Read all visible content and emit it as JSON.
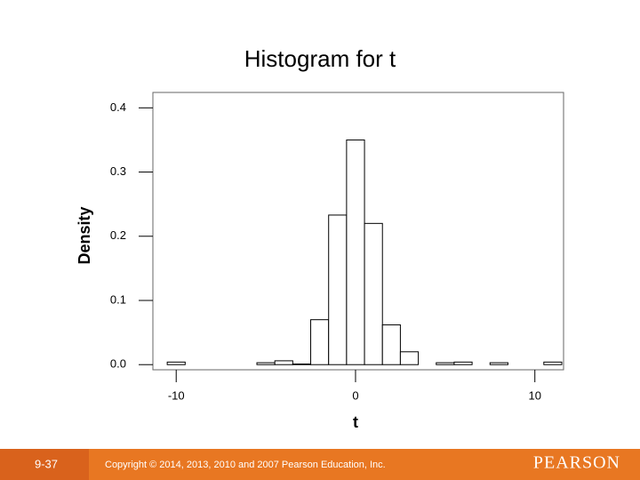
{
  "chart_data": {
    "type": "histogram",
    "title": "Histogram for t",
    "bins": [
      -10.5,
      -9.5,
      -8.5,
      -7.5,
      -6.5,
      -5.5,
      -4.5,
      -3.5,
      -2.5,
      -1.5,
      -0.5,
      0.5,
      1.5,
      2.5,
      3.5,
      4.5,
      5.5,
      6.5,
      7.5,
      8.5,
      9.5,
      10.5,
      11.5
    ],
    "values": [
      0.004,
      0,
      0,
      0,
      0,
      0.003,
      0.006,
      0.001,
      0.07,
      0.233,
      0.35,
      0.22,
      0.062,
      0.02,
      0,
      0.003,
      0.004,
      0,
      0.003,
      0,
      0,
      0.004
    ],
    "color": "#ffffff",
    "xlabel": "t",
    "ylabel": "Density",
    "xlim": [
      -11.3,
      11.6
    ],
    "ylim": [
      -0.008,
      0.424
    ],
    "xticks": [
      -10,
      0,
      10
    ],
    "yticks": [
      {
        "value": 0,
        "label": "0.0"
      },
      0.1,
      0.2,
      0.3,
      0.4
    ]
  },
  "footer": {
    "slide_number": "9-37",
    "copyright": "Copyright © 2014, 2013, 2010 and 2007 Pearson Education, Inc.",
    "brand": "PEARSON"
  }
}
